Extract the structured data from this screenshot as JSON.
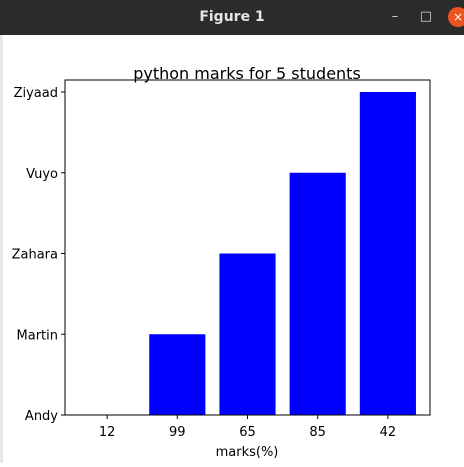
{
  "window": {
    "title": "Figure 1",
    "min_icon": "–",
    "max_icon": "□",
    "close_icon": "×"
  },
  "chart_data": {
    "type": "bar",
    "title": "python marks for 5 students",
    "xlabel": "marks(%)",
    "ylabel": "",
    "categories": [
      "12",
      "99",
      "65",
      "85",
      "42"
    ],
    "y_categories": [
      "Andy",
      "Martin",
      "Zahara",
      "Vuyo",
      "Ziyaad"
    ],
    "values": [
      "Andy",
      "Martin",
      "Zahara",
      "Vuyo",
      "Ziyaad"
    ],
    "value_index": [
      0,
      1,
      2,
      3,
      4
    ],
    "bar_color": "#0000ff",
    "grid": false
  }
}
